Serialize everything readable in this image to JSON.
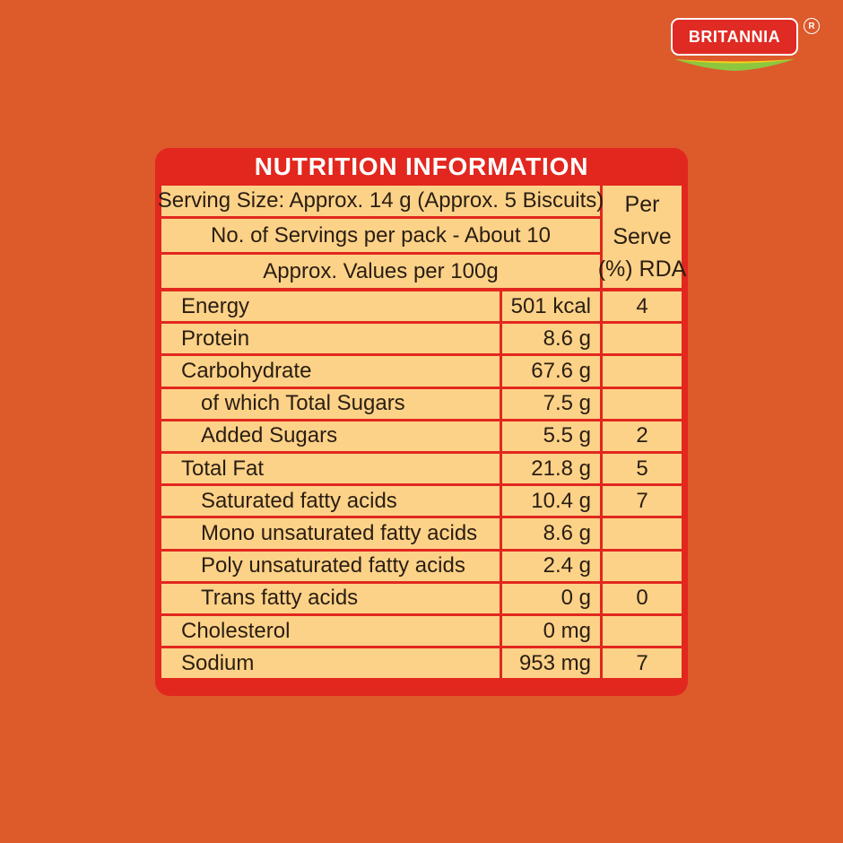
{
  "brand": {
    "name": "BRITANNIA",
    "reg_mark": "R"
  },
  "panel": {
    "title": "NUTRITION INFORMATION",
    "serving_size": "Serving Size: Approx. 14 g (Approx. 5 Biscuits)",
    "servings_per_pack": "No. of Servings per pack - About 10",
    "values_basis": "Approx. Values per 100g",
    "rda_header": [
      "Per",
      "Serve",
      "(%) RDA"
    ]
  },
  "nutrients": [
    {
      "name": "Energy",
      "value": "501 kcal",
      "rda": "4"
    },
    {
      "name": "Protein",
      "value": "8.6 g",
      "rda": ""
    },
    {
      "name": "Carbohydrate",
      "value": "67.6 g",
      "rda": ""
    },
    {
      "name": "of which Total Sugars",
      "value": "7.5 g",
      "rda": ""
    },
    {
      "name": "Added Sugars",
      "value": "5.5 g",
      "rda": "2"
    },
    {
      "name": "Total Fat",
      "value": "21.8 g",
      "rda": "5"
    },
    {
      "name": "Saturated fatty acids",
      "value": "10.4 g",
      "rda": "7"
    },
    {
      "name": "Mono unsaturated fatty acids",
      "value": "8.6 g",
      "rda": ""
    },
    {
      "name": "Poly unsaturated fatty acids",
      "value": "2.4 g",
      "rda": ""
    },
    {
      "name": "Trans fatty acids",
      "value": "0 g",
      "rda": "0"
    },
    {
      "name": "Cholesterol",
      "value": "0 mg",
      "rda": ""
    },
    {
      "name": "Sodium",
      "value": "953 mg",
      "rda": "7"
    }
  ],
  "colors": {
    "background": "#dd5a2b",
    "panel_red": "#e2271f",
    "cell_fill": "#fcd288",
    "text": "#2a1d12"
  }
}
